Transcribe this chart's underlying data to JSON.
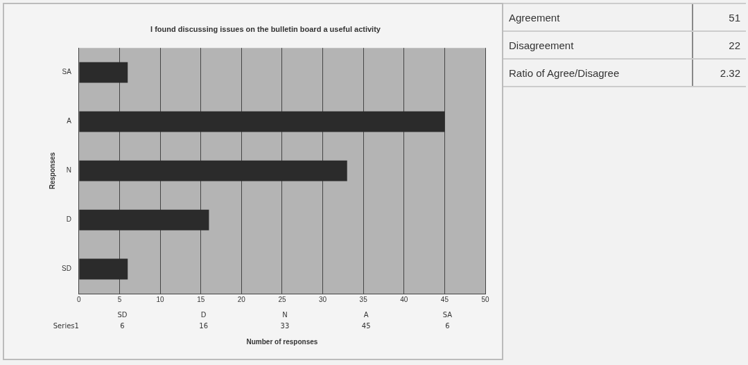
{
  "chart_data": [
    {
      "type": "bar",
      "orientation": "horizontal",
      "title": "I found discussing issues on the bulletin board a useful activity",
      "xlabel": "Number of responses",
      "ylabel": "Responses",
      "categories": [
        "SA",
        "A",
        "N",
        "D",
        "SD"
      ],
      "series": [
        {
          "color": "#2b2b2b",
          "values": [
            6,
            45,
            33,
            16,
            6
          ]
        }
      ],
      "xlim": [
        0,
        50
      ],
      "xticks": [
        0,
        5,
        10,
        15,
        20,
        25,
        30,
        35,
        40,
        45,
        50
      ],
      "grid": "x",
      "legend": false
    },
    {
      "type": "other",
      "categories": [
        "SD",
        "D",
        "N",
        "A",
        "SA"
      ],
      "series": [
        {
          "name": "Series1",
          "values": [
            6,
            16,
            33,
            45,
            6
          ]
        }
      ],
      "data_labels": true
    },
    {
      "type": "other",
      "categories": [
        "Agreement",
        "Disagreement",
        "Ratio of Agree/Disagree"
      ],
      "values": [
        51,
        22,
        2.32
      ],
      "data_labels": true
    }
  ]
}
